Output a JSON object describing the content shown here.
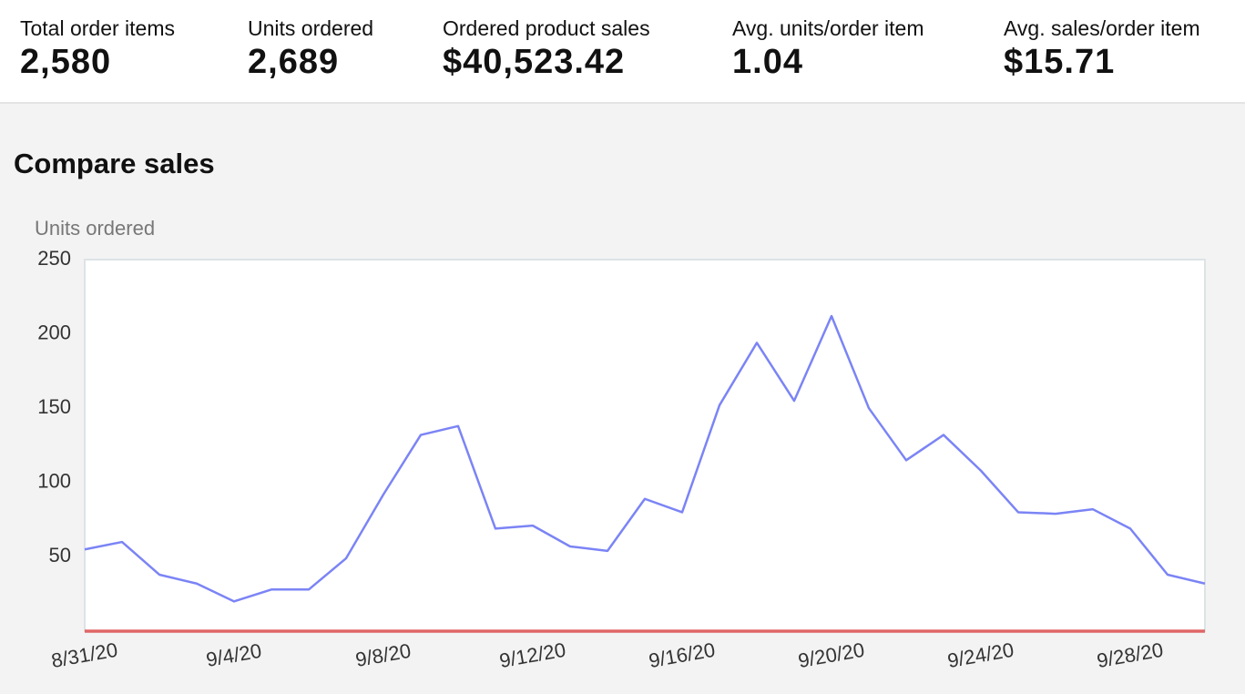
{
  "metrics": [
    {
      "label": "Total order items",
      "value": "2,580"
    },
    {
      "label": "Units ordered",
      "value": "2,689"
    },
    {
      "label": "Ordered product sales",
      "value": "$40,523.42"
    },
    {
      "label": "Avg. units/order item",
      "value": "1.04"
    },
    {
      "label": "Avg. sales/order item",
      "value": "$15.71"
    }
  ],
  "section_title": "Compare sales",
  "chart_data": {
    "type": "line",
    "y_label": "Units ordered",
    "categories": [
      "8/31/20",
      null,
      null,
      null,
      "9/4/20",
      null,
      null,
      null,
      "9/8/20",
      null,
      null,
      null,
      "9/12/20",
      null,
      null,
      null,
      "9/16/20",
      null,
      null,
      null,
      "9/20/20",
      null,
      null,
      null,
      "9/24/20",
      null,
      null,
      null,
      "9/28/20",
      null,
      null
    ],
    "series": [
      {
        "color": "#7b84f5",
        "values": [
          55,
          60,
          38,
          32,
          20,
          28,
          28,
          49,
          92,
          132,
          138,
          69,
          71,
          57,
          54,
          89,
          80,
          152,
          194,
          155,
          212,
          150,
          115,
          132,
          108,
          80,
          79,
          82,
          69,
          38,
          32
        ]
      },
      {
        "color": "#e06666",
        "values": [
          0,
          0,
          0,
          0,
          0,
          0,
          0,
          0,
          0,
          0,
          0,
          0,
          0,
          0,
          0,
          0,
          0,
          0,
          0,
          0,
          0,
          0,
          0,
          0,
          0,
          0,
          0,
          0,
          0,
          0,
          0
        ]
      }
    ],
    "ylim": [
      0,
      250
    ],
    "yticks": [
      50,
      100,
      150,
      200,
      250
    ],
    "grid": false
  }
}
